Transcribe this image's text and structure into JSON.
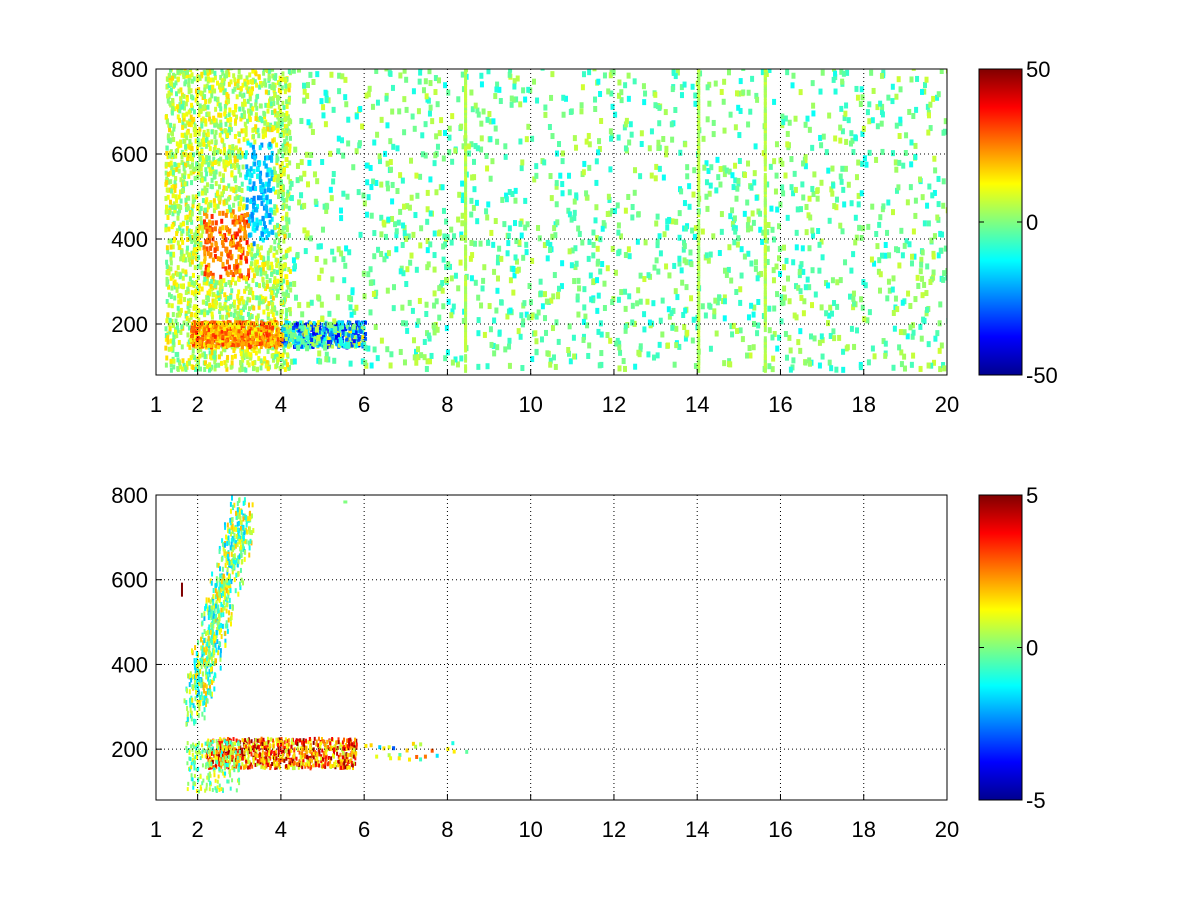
{
  "figure": {
    "background": "#ffffff"
  },
  "chart_data": [
    {
      "type": "heatmap",
      "title": "",
      "xlabel": "",
      "ylabel": "",
      "x_ticks": [
        1,
        2,
        4,
        6,
        8,
        10,
        12,
        14,
        16,
        18,
        20
      ],
      "y_ticks": [
        200,
        400,
        600,
        800
      ],
      "xlim": [
        1,
        20
      ],
      "ylim": [
        80,
        800
      ],
      "grid": true,
      "colormap": "jet",
      "colorbar": {
        "range": [
          -50,
          50
        ],
        "ticks": [
          -50,
          0,
          50
        ]
      },
      "features": [
        {
          "region": "broad band 2.1-3.2 (x) by 100-800 (y), increasing toward ~400",
          "value_range": [
            10,
            35
          ]
        },
        {
          "region": "horizontal band ~160-190 (y) from x=2.1 to 6",
          "value_range": [
            -40,
            30
          ]
        },
        {
          "region": "cyan patch 3.1-3.6 (x) by 400-600 (y)",
          "value_range": [
            -25,
            -10
          ]
        },
        {
          "region": "sparse speckle 6-20 (x) across all y",
          "value_range": [
            -10,
            10
          ]
        },
        {
          "region": "vertical streaks at x = 8.4, 14.0, 15.6",
          "value_range": [
            -5,
            8
          ]
        }
      ]
    },
    {
      "type": "heatmap",
      "title": "",
      "xlabel": "",
      "ylabel": "",
      "x_ticks": [
        1,
        2,
        4,
        6,
        8,
        10,
        12,
        14,
        16,
        18,
        20
      ],
      "y_ticks": [
        200,
        400,
        600,
        800
      ],
      "xlim": [
        1,
        20
      ],
      "ylim": [
        80,
        800
      ],
      "grid": true,
      "colormap": "jet",
      "colorbar": {
        "range": [
          -5,
          5
        ],
        "ticks": [
          -5,
          0,
          5
        ]
      },
      "features": [
        {
          "region": "diagonal cluster 2.0-3.0 (x) by 300-760 (y)",
          "value_range": [
            -2,
            2
          ]
        },
        {
          "region": "band ~150-230 (y) from x=2.2 to 5.8",
          "value_range": [
            1,
            5
          ]
        },
        {
          "region": "sparse points 6-8.5 (x) near y=180",
          "value_range": [
            -3,
            3
          ]
        }
      ]
    }
  ]
}
